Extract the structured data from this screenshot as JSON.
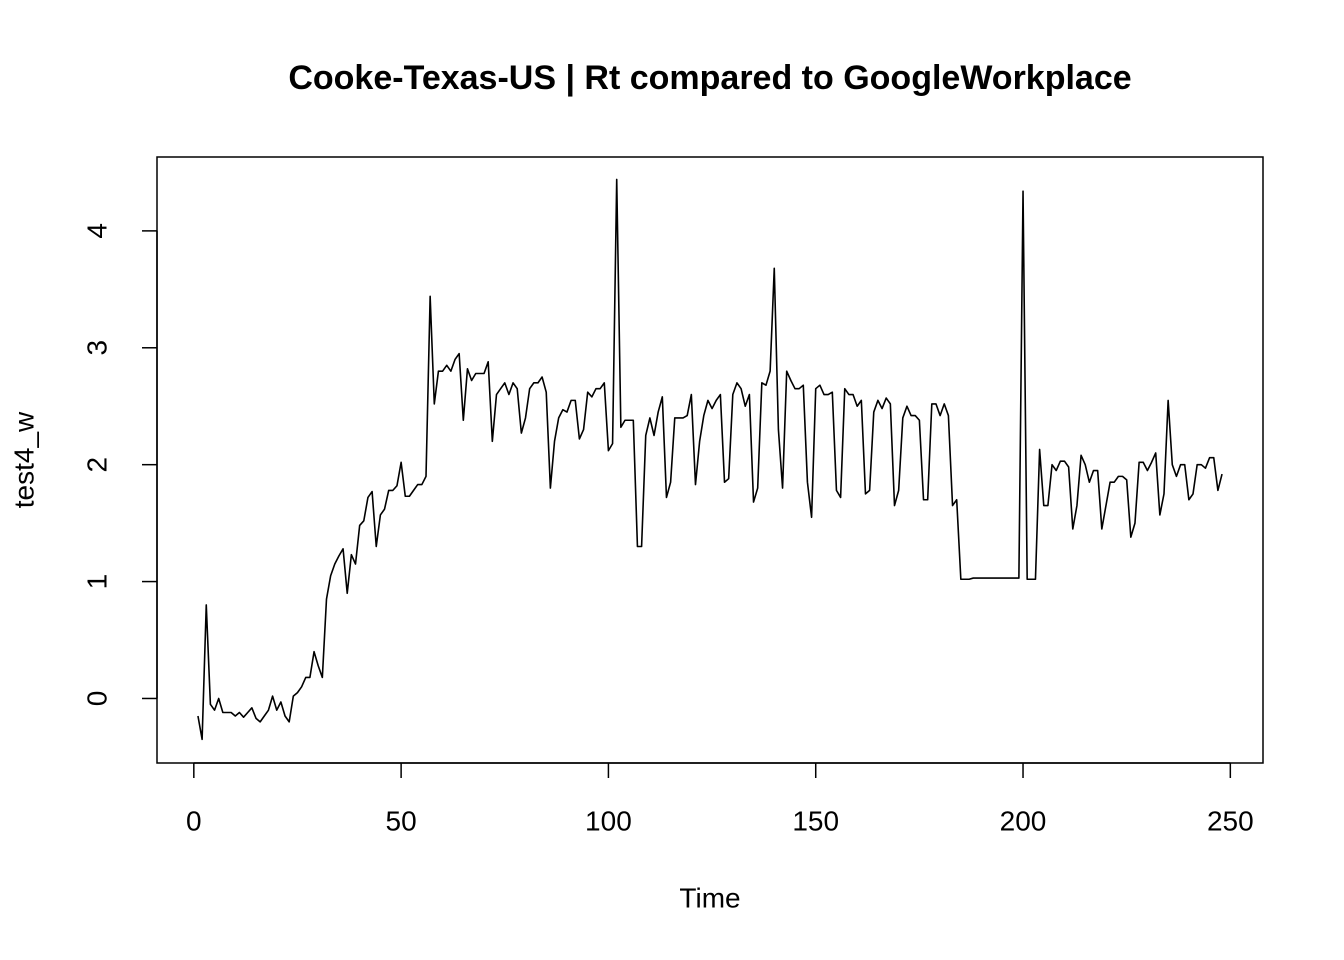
{
  "chart_data": {
    "type": "line",
    "title": "Cooke-Texas-US | Rt compared to GoogleWorkplace",
    "x_label": "Time",
    "y_label": "test4_w",
    "color": "#000000",
    "xlim": [
      -8.88,
      257.88
    ],
    "ylim": [
      -0.552,
      4.632
    ],
    "xticks": [
      0,
      50,
      100,
      150,
      200,
      250
    ],
    "yticks": [
      0,
      1,
      2,
      3,
      4
    ],
    "x": [
      1,
      2,
      3,
      4,
      5,
      6,
      7,
      8,
      9,
      10,
      11,
      12,
      13,
      14,
      15,
      16,
      17,
      18,
      19,
      20,
      21,
      22,
      23,
      24,
      25,
      26,
      27,
      28,
      29,
      30,
      31,
      32,
      33,
      34,
      35,
      36,
      37,
      38,
      39,
      40,
      41,
      42,
      43,
      44,
      45,
      46,
      47,
      48,
      49,
      50,
      51,
      52,
      53,
      54,
      55,
      56,
      57,
      58,
      59,
      60,
      61,
      62,
      63,
      64,
      65,
      66,
      67,
      68,
      69,
      70,
      71,
      72,
      73,
      74,
      75,
      76,
      77,
      78,
      79,
      80,
      81,
      82,
      83,
      84,
      85,
      86,
      87,
      88,
      89,
      90,
      91,
      92,
      93,
      94,
      95,
      96,
      97,
      98,
      99,
      100,
      101,
      102,
      103,
      104,
      105,
      106,
      107,
      108,
      109,
      110,
      111,
      112,
      113,
      114,
      115,
      116,
      117,
      118,
      119,
      120,
      121,
      122,
      123,
      124,
      125,
      126,
      127,
      128,
      129,
      130,
      131,
      132,
      133,
      134,
      135,
      136,
      137,
      138,
      139,
      140,
      141,
      142,
      143,
      144,
      145,
      146,
      147,
      148,
      149,
      150,
      151,
      152,
      153,
      154,
      155,
      156,
      157,
      158,
      159,
      160,
      161,
      162,
      163,
      164,
      165,
      166,
      167,
      168,
      169,
      170,
      171,
      172,
      173,
      174,
      175,
      176,
      177,
      178,
      179,
      180,
      181,
      182,
      183,
      184,
      185,
      186,
      187,
      188,
      189,
      190,
      191,
      192,
      193,
      194,
      195,
      196,
      197,
      198,
      199,
      200,
      201,
      202,
      203,
      204,
      205,
      206,
      207,
      208,
      209,
      210,
      211,
      212,
      213,
      214,
      215,
      216,
      217,
      218,
      219,
      220,
      221,
      222,
      223,
      224,
      225,
      226,
      227,
      228,
      229,
      230,
      231,
      232,
      233,
      234,
      235,
      236,
      237,
      238,
      239,
      240,
      241,
      242,
      243,
      244,
      245,
      246,
      247,
      248
    ],
    "values": [
      -0.15,
      -0.35,
      0.8,
      -0.05,
      -0.1,
      0.0,
      -0.12,
      -0.12,
      -0.12,
      -0.15,
      -0.12,
      -0.16,
      -0.12,
      -0.08,
      -0.17,
      -0.2,
      -0.15,
      -0.1,
      0.02,
      -0.1,
      -0.03,
      -0.15,
      -0.2,
      0.02,
      0.05,
      0.1,
      0.18,
      0.18,
      0.4,
      0.28,
      0.18,
      0.85,
      1.05,
      1.15,
      1.22,
      1.28,
      0.9,
      1.23,
      1.15,
      1.48,
      1.52,
      1.72,
      1.77,
      1.3,
      1.57,
      1.62,
      1.78,
      1.78,
      1.82,
      2.02,
      1.73,
      1.73,
      1.78,
      1.83,
      1.83,
      1.9,
      3.44,
      2.52,
      2.8,
      2.8,
      2.85,
      2.8,
      2.9,
      2.95,
      2.38,
      2.82,
      2.72,
      2.78,
      2.78,
      2.78,
      2.88,
      2.2,
      2.6,
      2.65,
      2.7,
      2.6,
      2.7,
      2.65,
      2.27,
      2.4,
      2.65,
      2.7,
      2.7,
      2.75,
      2.62,
      1.8,
      2.2,
      2.4,
      2.47,
      2.45,
      2.55,
      2.55,
      2.22,
      2.3,
      2.62,
      2.58,
      2.65,
      2.65,
      2.7,
      2.12,
      2.18,
      4.44,
      2.32,
      2.38,
      2.38,
      2.38,
      1.3,
      1.3,
      2.25,
      2.4,
      2.25,
      2.45,
      2.58,
      1.72,
      1.85,
      2.4,
      2.4,
      2.4,
      2.42,
      2.6,
      1.83,
      2.2,
      2.42,
      2.55,
      2.48,
      2.55,
      2.6,
      1.85,
      1.88,
      2.6,
      2.7,
      2.65,
      2.5,
      2.6,
      1.68,
      1.8,
      2.7,
      2.68,
      2.8,
      3.68,
      2.3,
      1.8,
      2.8,
      2.72,
      2.65,
      2.65,
      2.68,
      1.85,
      1.55,
      2.65,
      2.68,
      2.6,
      2.6,
      2.62,
      1.78,
      1.72,
      2.65,
      2.6,
      2.6,
      2.5,
      2.55,
      1.75,
      1.78,
      2.45,
      2.55,
      2.48,
      2.57,
      2.52,
      1.65,
      1.78,
      2.4,
      2.5,
      2.42,
      2.42,
      2.38,
      1.7,
      1.7,
      2.52,
      2.52,
      2.42,
      2.52,
      2.42,
      1.65,
      1.7,
      1.02,
      1.02,
      1.02,
      1.03,
      1.03,
      1.03,
      1.03,
      1.03,
      1.03,
      1.03,
      1.03,
      1.03,
      1.03,
      1.03,
      1.03,
      4.34,
      1.02,
      1.02,
      1.02,
      2.13,
      1.65,
      1.65,
      2.0,
      1.95,
      2.03,
      2.03,
      1.98,
      1.45,
      1.65,
      2.08,
      2.0,
      1.85,
      1.95,
      1.95,
      1.45,
      1.65,
      1.85,
      1.85,
      1.9,
      1.9,
      1.87,
      1.38,
      1.5,
      2.02,
      2.02,
      1.95,
      2.02,
      2.1,
      1.57,
      1.75,
      2.55,
      2.0,
      1.9,
      2.0,
      2.0,
      1.7,
      1.75,
      2.0,
      2.0,
      1.97,
      2.06,
      2.06,
      1.78,
      1.92
    ]
  }
}
